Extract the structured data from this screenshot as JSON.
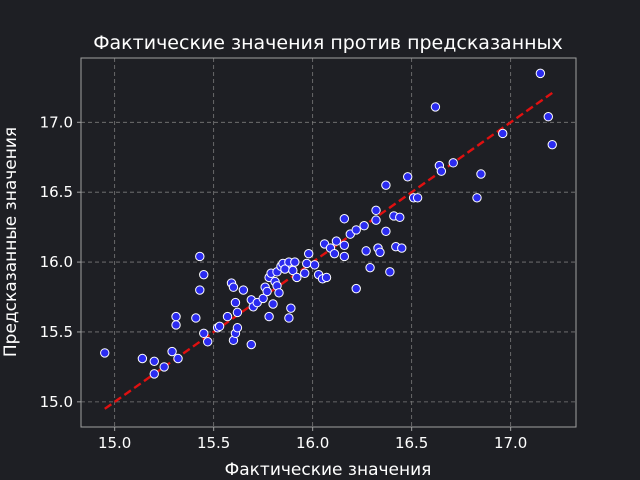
{
  "colors": {
    "background": "#1e1f24",
    "axes_edge": "#a0a0a0",
    "grid": "#7a7a7a",
    "point_fill": "#2b2bf0",
    "point_edge": "#ffffff",
    "fit_line": "#e01010",
    "text": "#ffffff"
  },
  "chart_data": {
    "type": "scatter",
    "title": "Фактические значения против предсказанных",
    "xlabel": "Фактические значения",
    "ylabel": "Предсказанные значения",
    "xlim": [
      14.83,
      17.33
    ],
    "ylim": [
      14.82,
      17.46
    ],
    "xticks": [
      15.0,
      15.5,
      16.0,
      16.5,
      17.0
    ],
    "yticks": [
      15.0,
      15.5,
      16.0,
      16.5,
      17.0
    ],
    "xtick_labels": [
      "15.0",
      "15.5",
      "16.0",
      "16.5",
      "17.0"
    ],
    "ytick_labels": [
      "15.0",
      "15.5",
      "16.0",
      "16.5",
      "17.0"
    ],
    "grid": true,
    "reference_line": {
      "style": "dashed",
      "x": [
        14.95,
        17.21
      ],
      "y": [
        14.95,
        17.21
      ]
    },
    "points": [
      [
        14.95,
        15.35
      ],
      [
        15.14,
        15.31
      ],
      [
        15.2,
        15.2
      ],
      [
        15.2,
        15.29
      ],
      [
        15.25,
        15.25
      ],
      [
        15.29,
        15.36
      ],
      [
        15.31,
        15.61
      ],
      [
        15.31,
        15.55
      ],
      [
        15.32,
        15.31
      ],
      [
        15.41,
        15.6
      ],
      [
        15.43,
        15.8
      ],
      [
        15.43,
        16.04
      ],
      [
        15.45,
        15.91
      ],
      [
        15.45,
        15.49
      ],
      [
        15.47,
        15.43
      ],
      [
        15.52,
        15.53
      ],
      [
        15.53,
        15.54
      ],
      [
        15.57,
        15.61
      ],
      [
        15.59,
        15.85
      ],
      [
        15.6,
        15.44
      ],
      [
        15.6,
        15.82
      ],
      [
        15.61,
        15.49
      ],
      [
        15.61,
        15.71
      ],
      [
        15.62,
        15.64
      ],
      [
        15.62,
        15.53
      ],
      [
        15.65,
        15.8
      ],
      [
        15.69,
        15.41
      ],
      [
        15.69,
        15.73
      ],
      [
        15.7,
        15.68
      ],
      [
        15.72,
        15.71
      ],
      [
        15.75,
        15.74
      ],
      [
        15.76,
        15.82
      ],
      [
        15.77,
        15.79
      ],
      [
        15.78,
        15.61
      ],
      [
        15.78,
        15.89
      ],
      [
        15.79,
        15.92
      ],
      [
        15.8,
        15.7
      ],
      [
        15.81,
        15.86
      ],
      [
        15.82,
        15.83
      ],
      [
        15.82,
        15.93
      ],
      [
        15.83,
        15.78
      ],
      [
        15.84,
        15.97
      ],
      [
        15.85,
        15.99
      ],
      [
        15.86,
        15.95
      ],
      [
        15.88,
        16.0
      ],
      [
        15.88,
        15.6
      ],
      [
        15.89,
        15.67
      ],
      [
        15.9,
        15.94
      ],
      [
        15.91,
        16.0
      ],
      [
        15.92,
        15.89
      ],
      [
        15.96,
        15.92
      ],
      [
        15.97,
        15.99
      ],
      [
        15.98,
        16.06
      ],
      [
        16.01,
        15.98
      ],
      [
        16.03,
        15.91
      ],
      [
        16.05,
        15.88
      ],
      [
        16.06,
        16.13
      ],
      [
        16.07,
        15.89
      ],
      [
        16.09,
        16.1
      ],
      [
        16.11,
        16.06
      ],
      [
        16.12,
        16.15
      ],
      [
        16.16,
        16.12
      ],
      [
        16.16,
        16.04
      ],
      [
        16.16,
        16.31
      ],
      [
        16.19,
        16.2
      ],
      [
        16.22,
        15.81
      ],
      [
        16.22,
        16.23
      ],
      [
        16.26,
        16.26
      ],
      [
        16.27,
        16.08
      ],
      [
        16.29,
        15.96
      ],
      [
        16.32,
        16.37
      ],
      [
        16.32,
        16.3
      ],
      [
        16.33,
        16.1
      ],
      [
        16.34,
        16.07
      ],
      [
        16.37,
        16.22
      ],
      [
        16.37,
        16.55
      ],
      [
        16.39,
        15.93
      ],
      [
        16.41,
        16.33
      ],
      [
        16.42,
        16.11
      ],
      [
        16.44,
        16.32
      ],
      [
        16.45,
        16.1
      ],
      [
        16.48,
        16.61
      ],
      [
        16.51,
        16.46
      ],
      [
        16.53,
        16.46
      ],
      [
        16.62,
        17.11
      ],
      [
        16.64,
        16.69
      ],
      [
        16.65,
        16.65
      ],
      [
        16.71,
        16.71
      ],
      [
        16.83,
        16.46
      ],
      [
        16.85,
        16.63
      ],
      [
        16.96,
        16.92
      ],
      [
        17.15,
        17.35
      ],
      [
        17.19,
        17.04
      ],
      [
        17.21,
        16.84
      ]
    ]
  }
}
